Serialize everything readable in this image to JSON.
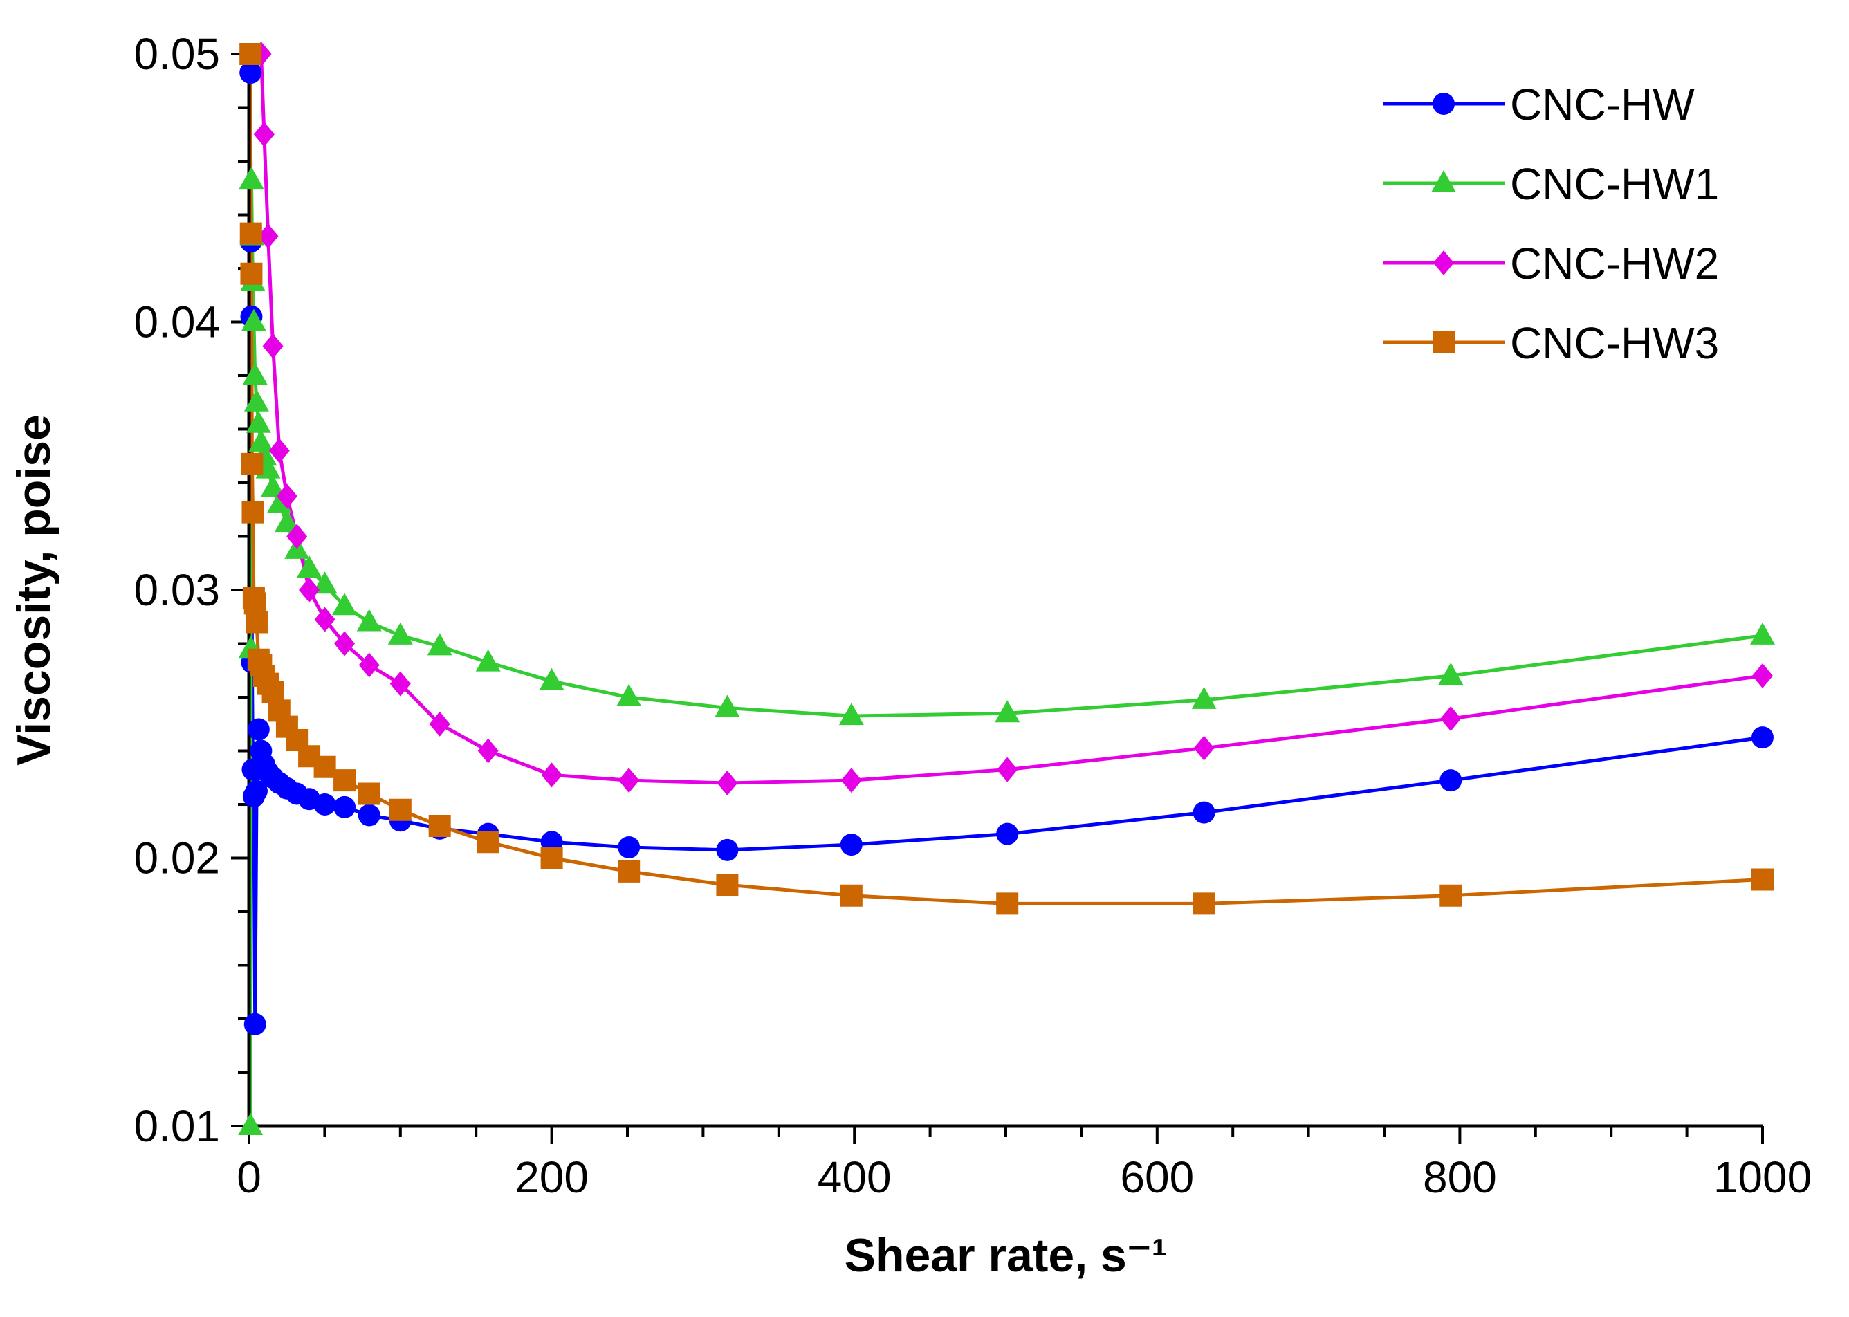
{
  "chart_data": {
    "type": "line",
    "title": "",
    "xlabel": "Shear rate, s⁻¹",
    "ylabel": "Viscosity, poise",
    "xlim": [
      0,
      1000
    ],
    "ylim": [
      0.01,
      0.05
    ],
    "xticks": [
      0,
      200,
      400,
      600,
      800,
      1000
    ],
    "xtick_labels": [
      "0",
      "200",
      "400",
      "600",
      "800",
      "1000"
    ],
    "yticks": [
      0.01,
      0.02,
      0.03,
      0.04,
      0.05
    ],
    "ytick_labels": [
      "0.01",
      "0.02",
      "0.03",
      "0.04",
      "0.05"
    ],
    "grid": false,
    "legend": "top-right",
    "series": [
      {
        "name": "CNC-HW",
        "color": "#0000ff",
        "marker": "circle",
        "x": [
          1,
          1.26,
          1.58,
          2,
          2.51,
          3.16,
          3.98,
          5.01,
          6.31,
          7.94,
          10,
          12.6,
          15.8,
          20,
          25.1,
          31.6,
          39.8,
          50.1,
          63.1,
          79.4,
          100,
          126,
          158,
          200,
          251,
          316,
          398,
          501,
          631,
          794,
          1000
        ],
        "y": [
          0.0493,
          0.043,
          0.0402,
          0.0273,
          0.0233,
          0.0223,
          0.0138,
          0.0225,
          0.0248,
          0.024,
          0.0235,
          0.0232,
          0.023,
          0.0228,
          0.0226,
          0.0224,
          0.0222,
          0.022,
          0.0219,
          0.0216,
          0.0214,
          0.0211,
          0.0209,
          0.0206,
          0.0204,
          0.0203,
          0.0205,
          0.0209,
          0.0217,
          0.0229,
          0.0245
        ]
      },
      {
        "name": "CNC-HW1",
        "color": "#33cc33",
        "marker": "triangle",
        "x": [
          1,
          1.26,
          1.58,
          2,
          2.51,
          3.16,
          3.98,
          5.01,
          6.31,
          7.94,
          10,
          12.6,
          15.8,
          20,
          25.1,
          31.6,
          39.8,
          50.1,
          63.1,
          79.4,
          100,
          126,
          158,
          200,
          251,
          316,
          398,
          501,
          631,
          794,
          1000
        ],
        "y": [
          0.0098,
          0.0278,
          0.0453,
          0.0432,
          0.0415,
          0.04,
          0.038,
          0.037,
          0.0362,
          0.0355,
          0.035,
          0.0345,
          0.0338,
          0.0332,
          0.0325,
          0.0315,
          0.0308,
          0.0302,
          0.0294,
          0.0288,
          0.0283,
          0.0279,
          0.0273,
          0.0266,
          0.026,
          0.0256,
          0.0253,
          0.0254,
          0.0259,
          0.0268,
          0.0283
        ]
      },
      {
        "name": "CNC-HW2",
        "color": "#e600e6",
        "marker": "diamond",
        "x": [
          8,
          10,
          12.6,
          15.8,
          20,
          25.1,
          31.6,
          39.8,
          50.1,
          63.1,
          79.4,
          100,
          126,
          158,
          200,
          251,
          316,
          398,
          501,
          631,
          794,
          1000
        ],
        "y": [
          0.05,
          0.047,
          0.0432,
          0.0391,
          0.0352,
          0.0335,
          0.032,
          0.03,
          0.0289,
          0.028,
          0.0272,
          0.0265,
          0.025,
          0.024,
          0.0231,
          0.0229,
          0.0228,
          0.0229,
          0.0233,
          0.0241,
          0.0252,
          0.0268
        ]
      },
      {
        "name": "CNC-HW3",
        "color": "#cc6600",
        "marker": "square",
        "x": [
          1,
          1.26,
          1.58,
          2,
          2.51,
          3.16,
          3.98,
          5.01,
          6.31,
          7.94,
          10,
          12.6,
          15.8,
          20,
          25.1,
          31.6,
          39.8,
          50.1,
          63.1,
          79.4,
          100,
          126,
          158,
          200,
          251,
          316,
          398,
          501,
          631,
          794,
          1000
        ],
        "y": [
          0.05,
          0.0433,
          0.0418,
          0.0347,
          0.0329,
          0.0297,
          0.0295,
          0.0288,
          0.0274,
          0.0272,
          0.0268,
          0.0265,
          0.0262,
          0.0255,
          0.0249,
          0.0244,
          0.0238,
          0.0234,
          0.0229,
          0.0224,
          0.0218,
          0.0212,
          0.0206,
          0.02,
          0.0195,
          0.019,
          0.0186,
          0.0183,
          0.0183,
          0.0186,
          0.0192
        ]
      }
    ]
  }
}
